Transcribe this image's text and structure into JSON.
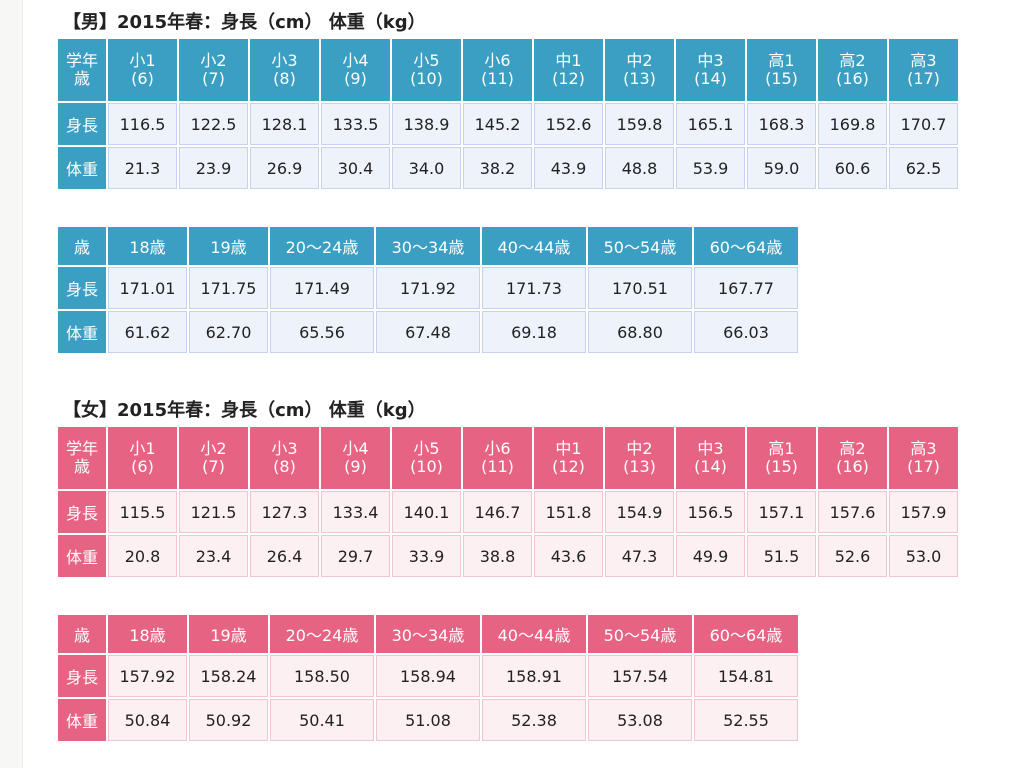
{
  "male": {
    "title": "【男】2015年春：身長（cm） 体重（kg）",
    "school": {
      "corner": [
        "学年",
        "歳"
      ],
      "grades": [
        {
          "grade": "小1",
          "age": "(6)"
        },
        {
          "grade": "小2",
          "age": "(7)"
        },
        {
          "grade": "小3",
          "age": "(8)"
        },
        {
          "grade": "小4",
          "age": "(9)"
        },
        {
          "grade": "小5",
          "age": "(10)"
        },
        {
          "grade": "小6",
          "age": "(11)"
        },
        {
          "grade": "中1",
          "age": "(12)"
        },
        {
          "grade": "中2",
          "age": "(13)"
        },
        {
          "grade": "中3",
          "age": "(14)"
        },
        {
          "grade": "高1",
          "age": "(15)"
        },
        {
          "grade": "高2",
          "age": "(16)"
        },
        {
          "grade": "高3",
          "age": "(17)"
        }
      ],
      "rows": [
        {
          "label": "身長",
          "values": [
            "116.5",
            "122.5",
            "128.1",
            "133.5",
            "138.9",
            "145.2",
            "152.6",
            "159.8",
            "165.1",
            "168.3",
            "169.8",
            "170.7"
          ]
        },
        {
          "label": "体重",
          "values": [
            "21.3",
            "23.9",
            "26.9",
            "30.4",
            "34.0",
            "38.2",
            "43.9",
            "48.8",
            "53.9",
            "59.0",
            "60.6",
            "62.5"
          ]
        }
      ]
    },
    "adult": {
      "corner": "歳",
      "ages": [
        "18歳",
        "19歳",
        "20〜24歳",
        "30〜34歳",
        "40〜44歳",
        "50〜54歳",
        "60〜64歳"
      ],
      "rows": [
        {
          "label": "身長",
          "values": [
            "171.01",
            "171.75",
            "171.49",
            "171.92",
            "171.73",
            "170.51",
            "167.77"
          ]
        },
        {
          "label": "体重",
          "values": [
            "61.62",
            "62.70",
            "65.56",
            "67.48",
            "69.18",
            "68.80",
            "66.03"
          ]
        }
      ]
    }
  },
  "female": {
    "title": "【女】2015年春：身長（cm） 体重（kg）",
    "school": {
      "corner": [
        "学年",
        "歳"
      ],
      "grades": [
        {
          "grade": "小1",
          "age": "(6)"
        },
        {
          "grade": "小2",
          "age": "(7)"
        },
        {
          "grade": "小3",
          "age": "(8)"
        },
        {
          "grade": "小4",
          "age": "(9)"
        },
        {
          "grade": "小5",
          "age": "(10)"
        },
        {
          "grade": "小6",
          "age": "(11)"
        },
        {
          "grade": "中1",
          "age": "(12)"
        },
        {
          "grade": "中2",
          "age": "(13)"
        },
        {
          "grade": "中3",
          "age": "(14)"
        },
        {
          "grade": "高1",
          "age": "(15)"
        },
        {
          "grade": "高2",
          "age": "(16)"
        },
        {
          "grade": "高3",
          "age": "(17)"
        }
      ],
      "rows": [
        {
          "label": "身長",
          "values": [
            "115.5",
            "121.5",
            "127.3",
            "133.4",
            "140.1",
            "146.7",
            "151.8",
            "154.9",
            "156.5",
            "157.1",
            "157.6",
            "157.9"
          ]
        },
        {
          "label": "体重",
          "values": [
            "20.8",
            "23.4",
            "26.4",
            "29.7",
            "33.9",
            "38.8",
            "43.6",
            "47.3",
            "49.9",
            "51.5",
            "52.6",
            "53.0"
          ]
        }
      ]
    },
    "adult": {
      "corner": "歳",
      "ages": [
        "18歳",
        "19歳",
        "20〜24歳",
        "30〜34歳",
        "40〜44歳",
        "50〜54歳",
        "60〜64歳"
      ],
      "rows": [
        {
          "label": "身長",
          "values": [
            "157.92",
            "158.24",
            "158.50",
            "158.94",
            "158.91",
            "157.54",
            "154.81"
          ]
        },
        {
          "label": "体重",
          "values": [
            "50.84",
            "50.92",
            "50.41",
            "51.08",
            "52.38",
            "53.08",
            "52.55"
          ]
        }
      ]
    }
  }
}
